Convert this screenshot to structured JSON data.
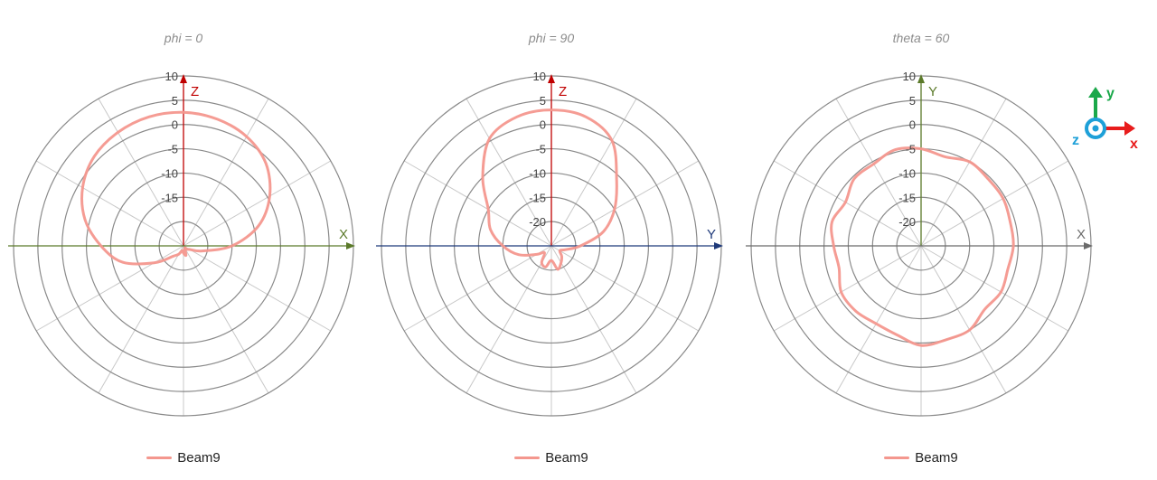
{
  "colors": {
    "grid": "#8a8a8a",
    "spoke": "#c8c8c8",
    "tick_text": "#444444",
    "beam": "#f4978e",
    "axis_red": "#c00000",
    "axis_green": "#5b7a2a",
    "axis_blue": "#1f3a7a",
    "axis_gray": "#6b6b6b",
    "gizmo_green": "#1aa84a",
    "gizmo_red": "#e81c1c",
    "gizmo_cyan": "#1ea0d8"
  },
  "gizmo": {
    "y_label": "y",
    "x_label": "x",
    "z_label": "z"
  },
  "chart_data": [
    {
      "type": "polar",
      "title": "phi = 0",
      "radial_ticks": [
        "10",
        "5",
        "0",
        "-5",
        "-10",
        "-15"
      ],
      "rlim": [
        -25,
        10
      ],
      "grid": true,
      "legend": {
        "position": "bottom",
        "entries": [
          "Beam9"
        ]
      },
      "axes": [
        {
          "label": "Z",
          "direction": "up",
          "color": "axis_red"
        },
        {
          "label": "X",
          "direction": "right",
          "color": "axis_green"
        }
      ],
      "series": [
        {
          "name": "Beam9",
          "angle_deg": [
            0,
            15,
            30,
            45,
            60,
            75,
            90,
            105,
            120,
            135,
            150,
            165,
            180,
            195,
            210,
            225,
            240,
            255,
            270,
            285,
            300,
            315,
            330,
            345
          ],
          "value_db": [
            2.5,
            2.0,
            1.0,
            -1.0,
            -4.5,
            -9.0,
            -15.0,
            -21.0,
            -23.5,
            -24.0,
            -24.5,
            -23.0,
            -23.5,
            -24.0,
            -23.0,
            -22.0,
            -18.0,
            -12.0,
            -8.0,
            -4.0,
            -1.0,
            1.0,
            2.0,
            2.5
          ]
        }
      ]
    },
    {
      "type": "polar",
      "title": "phi = 90",
      "radial_ticks": [
        "10",
        "5",
        "0",
        "-5",
        "-10",
        "-15",
        "-20"
      ],
      "rlim": [
        -25,
        10
      ],
      "grid": true,
      "legend": {
        "position": "bottom",
        "entries": [
          "Beam9"
        ]
      },
      "axes": [
        {
          "label": "Z",
          "direction": "up",
          "color": "axis_red"
        },
        {
          "label": "Y",
          "direction": "right",
          "color": "axis_blue"
        }
      ],
      "series": [
        {
          "name": "Beam9",
          "angle_deg": [
            0,
            15,
            30,
            45,
            60,
            75,
            90,
            105,
            120,
            135,
            150,
            165,
            180,
            195,
            210,
            225,
            240,
            255,
            270,
            285,
            300,
            315,
            330,
            345
          ],
          "value_db": [
            3.0,
            2.5,
            0.0,
            -6.0,
            -10.0,
            -14.0,
            -19.0,
            -22.0,
            -23.0,
            -22.0,
            -21.0,
            -20.0,
            -22.0,
            -20.5,
            -21.0,
            -23.0,
            -21.5,
            -18.0,
            -15.0,
            -12.0,
            -10.0,
            -5.0,
            0.5,
            2.5
          ]
        }
      ]
    },
    {
      "type": "polar",
      "title": "theta = 60",
      "radial_ticks": [
        "10",
        "5",
        "0",
        "-5",
        "-10",
        "-15",
        "-20"
      ],
      "rlim": [
        -25,
        10
      ],
      "grid": true,
      "legend": {
        "position": "bottom",
        "entries": [
          "Beam9"
        ]
      },
      "axes": [
        {
          "label": "Y",
          "direction": "up",
          "color": "axis_green"
        },
        {
          "label": "X",
          "direction": "right",
          "color": "axis_gray"
        }
      ],
      "series": [
        {
          "name": "Beam9",
          "angle_deg": [
            0,
            15,
            30,
            45,
            60,
            75,
            90,
            105,
            120,
            135,
            150,
            165,
            180,
            195,
            210,
            225,
            240,
            255,
            270,
            285,
            300,
            315,
            330,
            345
          ],
          "value_db": [
            -5.0,
            -6.0,
            -5.0,
            -5.5,
            -5.5,
            -6.0,
            -6.0,
            -6.5,
            -6.0,
            -6.5,
            -5.0,
            -5.0,
            -4.5,
            -6.0,
            -6.5,
            -6.0,
            -6.0,
            -7.5,
            -7.0,
            -6.0,
            -7.0,
            -5.5,
            -5.5,
            -4.5
          ]
        }
      ]
    }
  ]
}
